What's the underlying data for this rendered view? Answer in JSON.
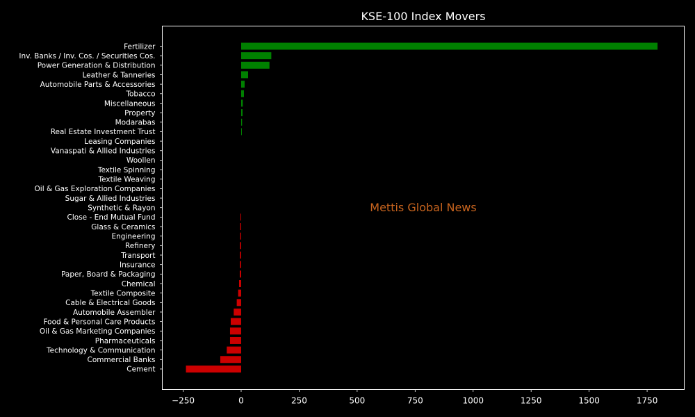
{
  "chart_data": {
    "type": "bar",
    "orientation": "horizontal",
    "title": "KSE-100 Index Movers",
    "xlabel": "",
    "ylabel": "",
    "xlim": [
      -340,
      1910
    ],
    "xticks": [
      -250,
      0,
      250,
      500,
      750,
      1000,
      1250,
      1500,
      1750
    ],
    "xtick_labels": [
      "−250",
      "0",
      "250",
      "500",
      "750",
      "1000",
      "1250",
      "1500",
      "1750"
    ],
    "grid": false,
    "legend": "none",
    "watermark": "Mettis Global News",
    "colors": {
      "background": "#000000",
      "axes": "#ffffff",
      "positive": "#008000",
      "negative": "#cc0000",
      "watermark": "#c8641e"
    },
    "categories": [
      "Fertilizer",
      "Inv. Banks / Inv. Cos. / Securities Cos.",
      "Power Generation & Distribution",
      "Leather & Tanneries",
      "Automobile Parts & Accessories",
      "Tobacco",
      "Miscellaneous",
      "Property",
      "Modarabas",
      "Real Estate Investment Trust",
      "Leasing Companies",
      "Vanaspati & Allied Industries",
      "Woollen",
      "Textile Spinning",
      "Textile Weaving",
      "Oil & Gas Exploration Companies",
      "Sugar & Allied Industries",
      "Synthetic & Rayon",
      "Close - End Mutual Fund",
      "Glass & Ceramics",
      "Engineering",
      "Refinery",
      "Transport",
      "Insurance",
      "Paper, Board & Packaging",
      "Chemical",
      "Textile Composite",
      "Cable & Electrical Goods",
      "Automobile Assembler",
      "Food & Personal Care Products",
      "Oil & Gas Marketing Companies",
      "Pharmaceuticals",
      "Technology & Communication",
      "Commercial Banks",
      "Cement"
    ],
    "values": [
      1795,
      130,
      122,
      30,
      15,
      12,
      7,
      6,
      4,
      3,
      0,
      0,
      0,
      0,
      0,
      0,
      0,
      0,
      -3,
      -4,
      -4,
      -5,
      -5,
      -5,
      -6,
      -9,
      -13,
      -19,
      -32,
      -45,
      -48,
      -48,
      -62,
      -90,
      -238
    ]
  }
}
